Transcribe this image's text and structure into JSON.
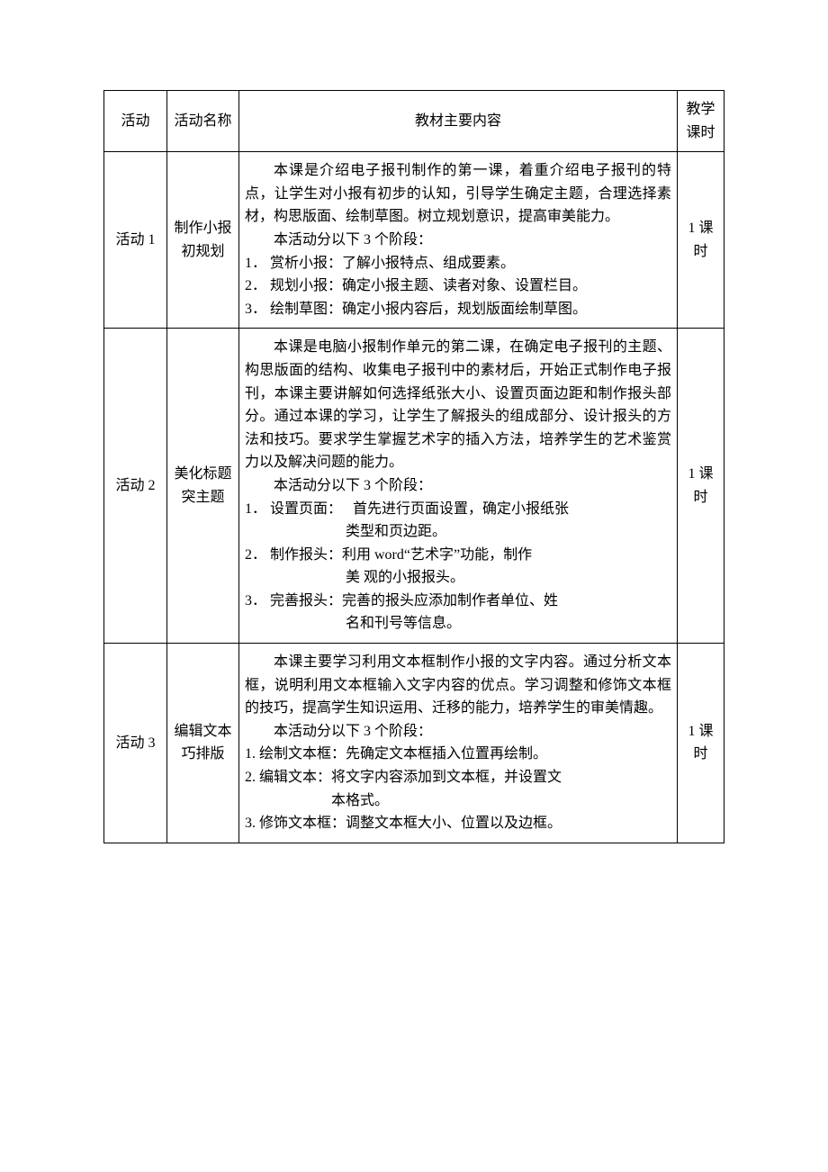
{
  "header": {
    "col_activity": "活动",
    "col_name": "活动名称",
    "col_content": "教材主要内容",
    "col_hours": "教学课时"
  },
  "rows": [
    {
      "activity": "活动 1",
      "name": "制作小报初规划",
      "hours": "1 课时",
      "intro1": "本课是介绍电子报刊制作的第一课，着重介绍电子报刊的特点，让学生对小报有初步的认知，引导学生确定主题，合理选择素材，构思版面、绘制草图。树立规划意识，提高审美能力。",
      "intro2": "本活动分以下 3 个阶段：",
      "s1": "1． 赏析小报：了解小报特点、组成要素。",
      "s2": "2． 规划小报：确定小报主题、读者对象、设置栏目。",
      "s3": "3． 绘制草图：确定小报内容后，规划版面绘制草图。"
    },
    {
      "activity": "活动 2",
      "name": "美化标题突主题",
      "hours": "1 课时",
      "intro1": "本课是电脑小报制作单元的第二课，在确定电子报刊的主题、构思版面的结构、收集电子报刊中的素材后，开始正式制作电子报刊，本课主要讲解如何选择纸张大小、设置页面边距和制作报头部分。通过本课的学习，让学生了解报头的组成部分、设计报头的方法和技巧。要求学生掌握艺术字的插入方法，培养学生的艺术鉴赏力以及解决问题的能力。",
      "intro2": "本活动分以下 3 个阶段：",
      "s1a": "1． 设置页面：   首先进行页面设置，确定小报纸张",
      "s1b": "　　　　　　　类型和页边距。",
      "s2a": "2． 制作报头：利用 word“艺术字”功能，制作",
      "s2b": "　　　　　　　美 观的小报报头。",
      "s3a": "3． 完善报头：完善的报头应添加制作者单位、姓",
      "s3b": "　　　　　　　名和刊号等信息。"
    },
    {
      "activity": "活动 3",
      "name": "编辑文本巧排版",
      "hours": "1 课时",
      "intro1": "本课主要学习利用文本框制作小报的文字内容。通过分析文本框，说明利用文本框输入文字内容的优点。学习调整和修饰文本框的技巧，提高学生知识运用、迁移的能力，培养学生的审美情趣。",
      "intro2": "本活动分以下 3 个阶段：",
      "s1": "1. 绘制文本框：先确定文本框插入位置再绘制。",
      "s2a": "2. 编辑文本：将文字内容添加到文本框，并设置文",
      "s2b": "　　　　　　本格式。",
      "s3": "3. 修饰文本框：调整文本框大小、位置以及边框。"
    }
  ]
}
